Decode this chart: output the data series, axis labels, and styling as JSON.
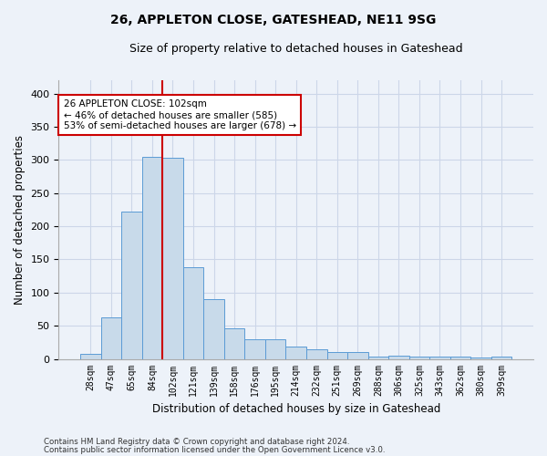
{
  "title": "26, APPLETON CLOSE, GATESHEAD, NE11 9SG",
  "subtitle": "Size of property relative to detached houses in Gateshead",
  "xlabel": "Distribution of detached houses by size in Gateshead",
  "ylabel": "Number of detached properties",
  "bar_values": [
    8,
    63,
    222,
    305,
    303,
    138,
    90,
    46,
    29,
    29,
    19,
    14,
    11,
    10,
    4,
    5,
    3,
    3,
    4,
    2,
    4
  ],
  "bar_labels": [
    "28sqm",
    "47sqm",
    "65sqm",
    "84sqm",
    "102sqm",
    "121sqm",
    "139sqm",
    "158sqm",
    "176sqm",
    "195sqm",
    "214sqm",
    "232sqm",
    "251sqm",
    "269sqm",
    "288sqm",
    "306sqm",
    "325sqm",
    "343sqm",
    "362sqm",
    "380sqm",
    "399sqm"
  ],
  "bar_color": "#c8daea",
  "bar_edge_color": "#5b9bd5",
  "red_line_index": 4,
  "ylim": [
    0,
    420
  ],
  "yticks": [
    0,
    50,
    100,
    150,
    200,
    250,
    300,
    350,
    400
  ],
  "annotation_text": "26 APPLETON CLOSE: 102sqm\n← 46% of detached houses are smaller (585)\n53% of semi-detached houses are larger (678) →",
  "annotation_box_color": "#ffffff",
  "annotation_box_edge": "#cc0000",
  "footer_line1": "Contains HM Land Registry data © Crown copyright and database right 2024.",
  "footer_line2": "Contains public sector information licensed under the Open Government Licence v3.0.",
  "grid_color": "#ccd6e8",
  "background_color": "#edf2f9"
}
